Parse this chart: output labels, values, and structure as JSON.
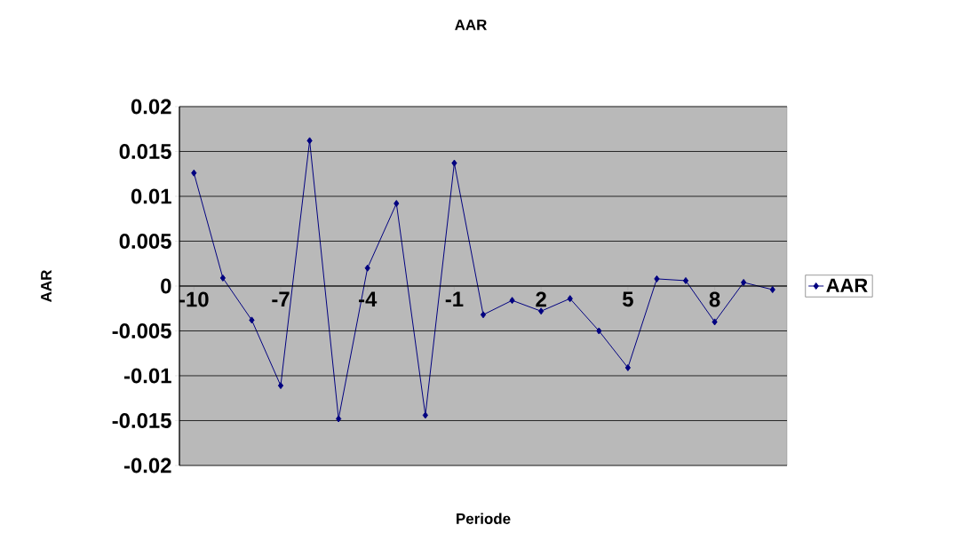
{
  "chart_data": {
    "type": "line",
    "title": "AAR",
    "xlabel": "Periode",
    "ylabel": "AAR",
    "categories": [
      "-10",
      null,
      null,
      "-7",
      null,
      null,
      "-4",
      null,
      null,
      "-1",
      null,
      null,
      "2",
      null,
      null,
      "5",
      null,
      null,
      "8",
      null,
      null
    ],
    "series": [
      {
        "name": "AAR",
        "color": "#000080",
        "values": [
          0.0126,
          0.0009,
          -0.0038,
          -0.0111,
          0.0162,
          -0.0148,
          0.002,
          0.0092,
          -0.0144,
          0.0137,
          -0.0032,
          -0.0016,
          -0.0028,
          -0.0014,
          -0.005,
          -0.0091,
          0.0008,
          0.0006,
          -0.004,
          0.0004,
          -0.0004
        ]
      }
    ],
    "ylim": [
      -0.02,
      0.02
    ],
    "yticks": [
      -0.02,
      -0.015,
      -0.01,
      -0.005,
      0,
      0.005,
      0.01,
      0.015,
      0.02
    ],
    "grid": "y",
    "legend": "right",
    "marker": "diamond"
  }
}
